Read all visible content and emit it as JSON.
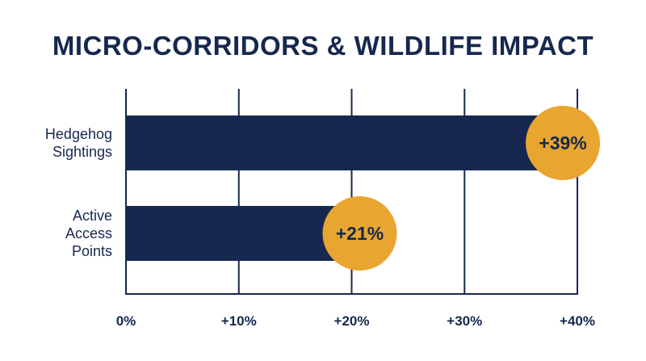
{
  "chart_data": {
    "type": "bar",
    "orientation": "horizontal",
    "title": "MICRO-CORRIDORS & WILDLIFE IMPACT",
    "categories": [
      "Hedgehog Sightings",
      "Active Access Points"
    ],
    "category_label_lines": [
      [
        "Hedgehog",
        "Sightings"
      ],
      [
        "Active",
        "Access",
        "Points"
      ]
    ],
    "values": [
      39,
      21
    ],
    "data_labels": [
      "+39%",
      "+21%"
    ],
    "xlim": [
      0,
      40
    ],
    "xticks": [
      0,
      10,
      20,
      30,
      40
    ],
    "xtick_labels": [
      "0%",
      "+10%",
      "+20%",
      "+30%",
      "+40%"
    ],
    "grid": "vertical",
    "colors": {
      "bar": "#16284f",
      "marker": "#e8a530",
      "text": "#16284f",
      "axis": "#16284f"
    }
  }
}
